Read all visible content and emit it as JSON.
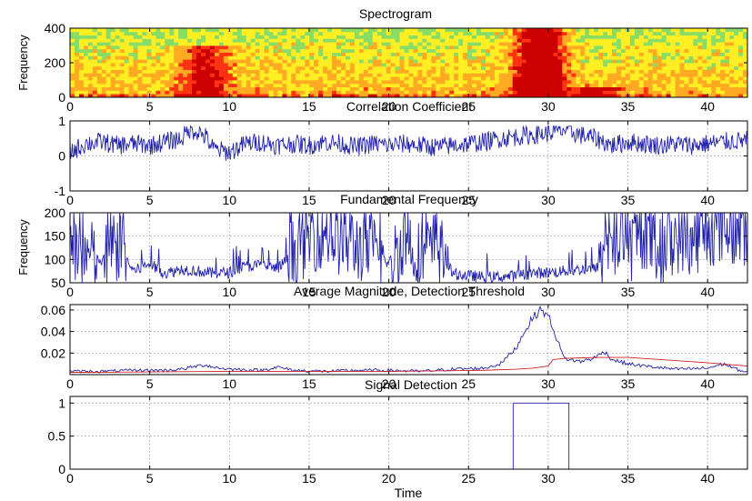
{
  "figure": {
    "colors": {
      "blue": "#2222aa",
      "red": "#cc2222",
      "grid": "#8a8a8a"
    }
  },
  "chart_data": [
    {
      "type": "heatmap",
      "title": "Spectrogram",
      "xlabel": "",
      "ylabel": "Frequency",
      "xlim": [
        0,
        42.5
      ],
      "ylim": [
        0,
        400
      ],
      "xticks": [
        "0",
        "5",
        "10",
        "15",
        "20",
        "25",
        "30",
        "35",
        "40"
      ],
      "yticks": [
        "0",
        "200",
        "400"
      ],
      "grid": false,
      "colormap": [
        "#22bbaa",
        "#88dd66",
        "#ffee22",
        "#ffaa22",
        "#ff3311",
        "#cc0000"
      ],
      "energy_events": [
        {
          "time": 8.5,
          "freq_low": 0,
          "freq_high": 300,
          "level": 0.55
        },
        {
          "time": 29.5,
          "freq_low": 0,
          "freq_high": 400,
          "level": 0.95
        },
        {
          "time": 33,
          "freq_low": 0,
          "freq_high": 60,
          "level": 0.6
        }
      ]
    },
    {
      "type": "line",
      "title": "Correlation Coefficient",
      "xlabel": "",
      "ylabel": "",
      "xlim": [
        0,
        42.5
      ],
      "ylim": [
        -1,
        1
      ],
      "xticks": [
        "0",
        "5",
        "10",
        "15",
        "20",
        "25",
        "30",
        "35",
        "40"
      ],
      "yticks": [
        "-1",
        "0",
        "1"
      ],
      "grid": true,
      "series": [
        {
          "values_x": [
            0,
            1,
            2,
            3,
            4,
            5,
            6,
            7,
            7.5,
            8,
            8.5,
            9,
            10,
            11,
            12,
            13,
            14,
            15,
            16,
            17,
            18,
            19,
            20,
            21,
            22,
            23,
            24,
            25,
            26,
            27,
            28,
            29,
            30,
            31,
            32,
            33,
            34,
            35,
            36,
            37,
            38,
            39,
            40,
            41,
            42.5
          ],
          "values_y": [
            0.1,
            0.35,
            0.4,
            0.3,
            0.35,
            0.3,
            0.4,
            0.5,
            0.75,
            0.7,
            0.55,
            0.2,
            0.1,
            0.35,
            0.4,
            0.3,
            0.35,
            0.3,
            0.4,
            0.35,
            0.25,
            0.35,
            0.3,
            0.35,
            0.3,
            0.25,
            0.3,
            0.35,
            0.4,
            0.5,
            0.55,
            0.6,
            0.65,
            0.75,
            0.6,
            0.5,
            0.3,
            0.4,
            0.35,
            0.3,
            0.35,
            0.3,
            0.35,
            0.4,
            0.45
          ]
        }
      ]
    },
    {
      "type": "line",
      "title": "Fundamental Frequency",
      "xlabel": "",
      "ylabel": "Frequency",
      "xlim": [
        0,
        42.5
      ],
      "ylim": [
        50,
        200
      ],
      "xticks": [
        "0",
        "5",
        "10",
        "15",
        "20",
        "25",
        "30",
        "35",
        "40"
      ],
      "yticks": [
        "50",
        "100",
        "150",
        "200"
      ],
      "grid": true,
      "series": [
        {
          "values_x": [
            0,
            1,
            2,
            3,
            4,
            5,
            6,
            7,
            8,
            9,
            10,
            11,
            12,
            13,
            14,
            15,
            16,
            17,
            18,
            19,
            20,
            21,
            22,
            23,
            24,
            25,
            26,
            27,
            28,
            29,
            30,
            31,
            32,
            33,
            34,
            35,
            36,
            37,
            38,
            39,
            40,
            41,
            42.5
          ],
          "values_y": [
            120,
            110,
            95,
            130,
            75,
            90,
            70,
            80,
            75,
            70,
            72,
            85,
            88,
            80,
            110,
            150,
            160,
            140,
            130,
            120,
            90,
            150,
            100,
            130,
            70,
            65,
            62,
            63,
            65,
            70,
            72,
            75,
            78,
            80,
            140,
            120,
            160,
            110,
            150,
            140,
            160,
            170,
            150
          ]
        }
      ]
    },
    {
      "type": "line",
      "title": "Average Magnitude, Detection Threshold",
      "xlabel": "",
      "ylabel": "",
      "xlim": [
        0,
        42.5
      ],
      "ylim": [
        0,
        0.065
      ],
      "xticks": [
        "0",
        "5",
        "10",
        "15",
        "20",
        "25",
        "30",
        "35",
        "40"
      ],
      "yticks": [
        "0.02",
        "0.04",
        "0.06"
      ],
      "grid": true,
      "series": [
        {
          "color": "#2222aa",
          "values_x": [
            0,
            2,
            4,
            6,
            7,
            8,
            8.5,
            9,
            10,
            12,
            13,
            14,
            16,
            18,
            20,
            22,
            24,
            26,
            27,
            28,
            28.5,
            29,
            29.5,
            30,
            30.5,
            31,
            32,
            33,
            33.5,
            34,
            35,
            36,
            38,
            40,
            41,
            42,
            42.5
          ],
          "values_y": [
            0.003,
            0.003,
            0.004,
            0.004,
            0.005,
            0.008,
            0.009,
            0.007,
            0.005,
            0.004,
            0.007,
            0.004,
            0.003,
            0.004,
            0.004,
            0.003,
            0.005,
            0.006,
            0.01,
            0.025,
            0.04,
            0.052,
            0.06,
            0.055,
            0.035,
            0.015,
            0.012,
            0.016,
            0.022,
            0.014,
            0.01,
            0.008,
            0.005,
            0.006,
            0.01,
            0.004,
            0.002
          ]
        },
        {
          "color": "#cc2222",
          "values_x": [
            0,
            10,
            20,
            26,
            28,
            29,
            30,
            30.3,
            31,
            33,
            35,
            37,
            40,
            42.5
          ],
          "values_y": [
            0.002,
            0.003,
            0.003,
            0.004,
            0.005,
            0.006,
            0.008,
            0.014,
            0.015,
            0.016,
            0.016,
            0.014,
            0.011,
            0.008
          ]
        }
      ]
    },
    {
      "type": "line",
      "title": "Signal Detection",
      "xlabel": "Time",
      "ylabel": "",
      "xlim": [
        0,
        42.5
      ],
      "ylim": [
        0,
        1.1
      ],
      "xticks": [
        "0",
        "5",
        "10",
        "15",
        "20",
        "25",
        "30",
        "35",
        "40"
      ],
      "yticks": [
        "0",
        "0.5",
        "1"
      ],
      "grid": true,
      "series": [
        {
          "values_x": [
            0,
            27.8,
            27.8,
            31.3,
            31.3,
            42.5
          ],
          "values_y": [
            0,
            0,
            1,
            1,
            0,
            0
          ]
        }
      ]
    }
  ]
}
